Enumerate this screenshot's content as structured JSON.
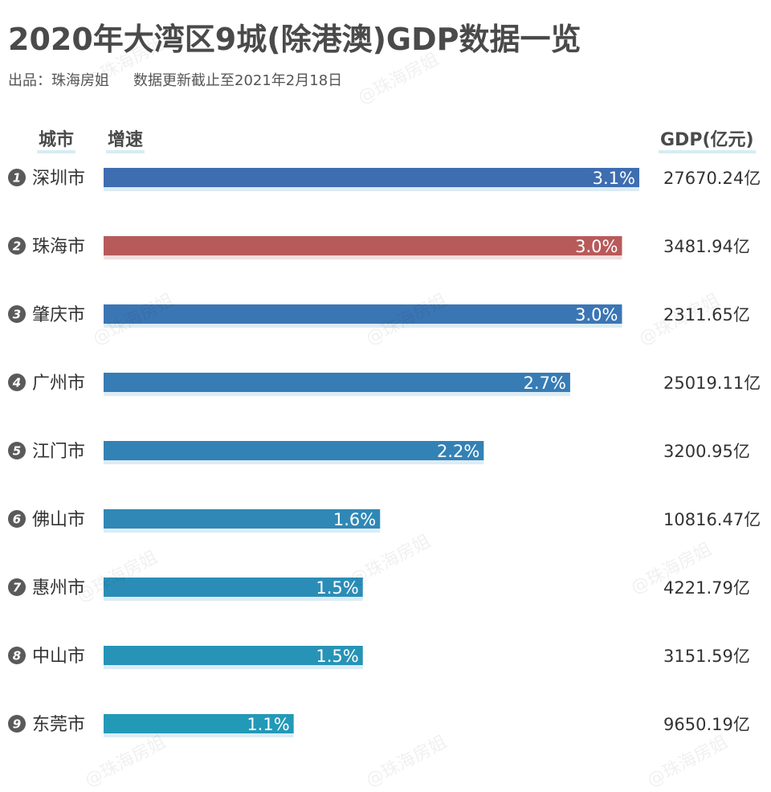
{
  "header": {
    "title": "2020年大湾区9城(除港澳)GDP数据一览",
    "source": "出品：珠海房姐",
    "note": "数据更新截止至2021年2月18日"
  },
  "columns": {
    "city": "城市",
    "growth": "增速",
    "gdp": "GDP(亿元)"
  },
  "watermark": "@珠海房姐",
  "colors": {
    "first": "#3e6db0",
    "highlight": "#b85a5a",
    "gradient_start": "#3b76b4",
    "gradient_end": "#2399b8",
    "rank_badge": "#5a5a5a"
  },
  "chart_data": {
    "type": "bar",
    "orientation": "horizontal",
    "categories": [
      "深圳市",
      "珠海市",
      "肇庆市",
      "广州市",
      "江门市",
      "佛山市",
      "惠州市",
      "中山市",
      "东莞市"
    ],
    "ranks": [
      "1",
      "2",
      "3",
      "4",
      "5",
      "6",
      "7",
      "8",
      "9"
    ],
    "series": [
      {
        "values": [
          3.1,
          3.0,
          3.0,
          2.7,
          2.2,
          1.6,
          1.5,
          1.5,
          1.1
        ]
      }
    ],
    "value_labels": [
      "3.1%",
      "3.0%",
      "3.0%",
      "2.7%",
      "2.2%",
      "1.6%",
      "1.5%",
      "1.5%",
      "1.1%"
    ],
    "gdp_labels": [
      "27670.24亿",
      "3481.94亿",
      "2311.65亿",
      "25019.11亿",
      "3200.95亿",
      "10816.47亿",
      "4221.79亿",
      "3151.59亿",
      "9650.19亿"
    ],
    "xlim": [
      0,
      3.1
    ],
    "grid": false,
    "legend": "none"
  }
}
